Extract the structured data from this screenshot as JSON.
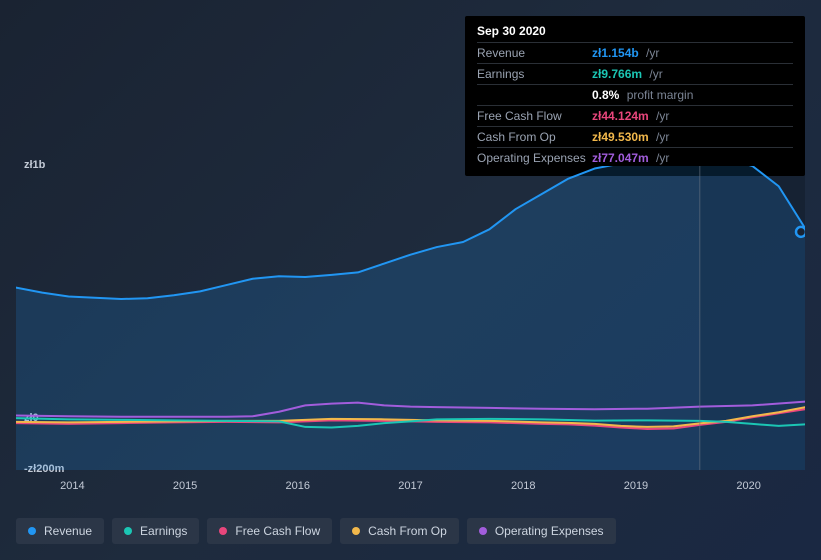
{
  "tooltip": {
    "date": "Sep 30 2020",
    "rows": [
      {
        "label": "Revenue",
        "value": "zł1.154b",
        "unit": "/yr",
        "color": "#2196f3"
      },
      {
        "label": "Earnings",
        "value": "zł9.766m",
        "unit": "/yr",
        "color": "#1bc6b4"
      },
      {
        "label": "",
        "value": "0.8%",
        "unit": "profit margin",
        "color": "#ffffff"
      },
      {
        "label": "Free Cash Flow",
        "value": "zł44.124m",
        "unit": "/yr",
        "color": "#e8467c"
      },
      {
        "label": "Cash From Op",
        "value": "zł49.530m",
        "unit": "/yr",
        "color": "#f2b84b"
      },
      {
        "label": "Operating Expenses",
        "value": "zł77.047m",
        "unit": "/yr",
        "color": "#a25ddc"
      }
    ]
  },
  "chart": {
    "type": "line-area",
    "background": "radial-gradient(#1a2842,#1a2332)",
    "ylim": [
      -200,
      1000
    ],
    "ylabels": [
      {
        "text": "zł1b",
        "y": 1000
      },
      {
        "text": "zł0",
        "y": 0
      },
      {
        "text": "-zł200m",
        "y": -200
      }
    ],
    "xlim": [
      2013.5,
      2021.0
    ],
    "xticks": [
      2014,
      2015,
      2016,
      2017,
      2018,
      2019,
      2020
    ],
    "xlabels": [
      "2014",
      "2015",
      "2016",
      "2017",
      "2018",
      "2019",
      "2020"
    ],
    "cursor_x": 2020.0,
    "shade_from_x": 2020.0,
    "marker_right": {
      "color": "#2196f3",
      "y": 740
    },
    "series": [
      {
        "name": "Revenue",
        "color": "#2196f3",
        "fill": true,
        "fill_opacity": 0.18,
        "width": 2,
        "points": [
          [
            2013.5,
            520
          ],
          [
            2013.75,
            500
          ],
          [
            2014.0,
            485
          ],
          [
            2014.25,
            480
          ],
          [
            2014.5,
            475
          ],
          [
            2014.75,
            478
          ],
          [
            2015.0,
            490
          ],
          [
            2015.25,
            505
          ],
          [
            2015.5,
            530
          ],
          [
            2015.75,
            555
          ],
          [
            2016.0,
            565
          ],
          [
            2016.25,
            562
          ],
          [
            2016.5,
            570
          ],
          [
            2016.75,
            580
          ],
          [
            2017.0,
            615
          ],
          [
            2017.25,
            650
          ],
          [
            2017.5,
            680
          ],
          [
            2017.75,
            700
          ],
          [
            2018.0,
            750
          ],
          [
            2018.25,
            830
          ],
          [
            2018.5,
            890
          ],
          [
            2018.75,
            950
          ],
          [
            2019.0,
            990
          ],
          [
            2019.25,
            1010
          ],
          [
            2019.5,
            1025
          ],
          [
            2019.75,
            1030
          ],
          [
            2020.0,
            1035
          ],
          [
            2020.25,
            1030
          ],
          [
            2020.5,
            1000
          ],
          [
            2020.75,
            920
          ],
          [
            2021.0,
            755
          ]
        ]
      },
      {
        "name": "Operating Expenses",
        "color": "#a25ddc",
        "fill": false,
        "width": 2,
        "points": [
          [
            2013.5,
            15
          ],
          [
            2014.0,
            12
          ],
          [
            2014.5,
            10
          ],
          [
            2015.0,
            10
          ],
          [
            2015.5,
            10
          ],
          [
            2015.75,
            12
          ],
          [
            2016.0,
            30
          ],
          [
            2016.25,
            55
          ],
          [
            2016.5,
            62
          ],
          [
            2016.75,
            66
          ],
          [
            2017.0,
            55
          ],
          [
            2017.25,
            50
          ],
          [
            2017.5,
            48
          ],
          [
            2018.0,
            45
          ],
          [
            2018.5,
            42
          ],
          [
            2019.0,
            40
          ],
          [
            2019.5,
            42
          ],
          [
            2020.0,
            50
          ],
          [
            2020.5,
            55
          ],
          [
            2021.0,
            70
          ]
        ]
      },
      {
        "name": "Free Cash Flow",
        "color": "#e8467c",
        "fill": false,
        "width": 2,
        "points": [
          [
            2013.5,
            -15
          ],
          [
            2014.0,
            -18
          ],
          [
            2014.5,
            -15
          ],
          [
            2015.0,
            -12
          ],
          [
            2015.5,
            -10
          ],
          [
            2016.0,
            -12
          ],
          [
            2016.25,
            -8
          ],
          [
            2016.5,
            -4
          ],
          [
            2017.0,
            -6
          ],
          [
            2017.5,
            -10
          ],
          [
            2018.0,
            -12
          ],
          [
            2018.5,
            -18
          ],
          [
            2018.75,
            -20
          ],
          [
            2019.0,
            -25
          ],
          [
            2019.25,
            -32
          ],
          [
            2019.5,
            -38
          ],
          [
            2019.75,
            -36
          ],
          [
            2020.0,
            -22
          ],
          [
            2020.25,
            -10
          ],
          [
            2020.5,
            8
          ],
          [
            2020.75,
            24
          ],
          [
            2021.0,
            40
          ]
        ]
      },
      {
        "name": "Cash From Op",
        "color": "#f2b84b",
        "fill": false,
        "width": 2,
        "points": [
          [
            2013.5,
            -10
          ],
          [
            2014.0,
            -12
          ],
          [
            2014.5,
            -10
          ],
          [
            2015.0,
            -8
          ],
          [
            2015.5,
            -6
          ],
          [
            2016.0,
            -6
          ],
          [
            2016.25,
            -2
          ],
          [
            2016.5,
            2
          ],
          [
            2017.0,
            0
          ],
          [
            2017.5,
            -4
          ],
          [
            2018.0,
            -6
          ],
          [
            2018.5,
            -12
          ],
          [
            2018.75,
            -14
          ],
          [
            2019.0,
            -18
          ],
          [
            2019.25,
            -26
          ],
          [
            2019.5,
            -30
          ],
          [
            2019.75,
            -28
          ],
          [
            2020.0,
            -16
          ],
          [
            2020.25,
            -6
          ],
          [
            2020.5,
            12
          ],
          [
            2020.75,
            28
          ],
          [
            2021.0,
            48
          ]
        ]
      },
      {
        "name": "Earnings",
        "color": "#1bc6b4",
        "fill": false,
        "width": 2,
        "points": [
          [
            2013.5,
            5
          ],
          [
            2014.0,
            0
          ],
          [
            2014.5,
            -2
          ],
          [
            2015.0,
            -4
          ],
          [
            2015.5,
            -6
          ],
          [
            2016.0,
            -8
          ],
          [
            2016.25,
            -30
          ],
          [
            2016.5,
            -32
          ],
          [
            2016.75,
            -26
          ],
          [
            2017.0,
            -15
          ],
          [
            2017.25,
            -8
          ],
          [
            2017.5,
            0
          ],
          [
            2018.0,
            2
          ],
          [
            2018.5,
            0
          ],
          [
            2019.0,
            -5
          ],
          [
            2019.5,
            -4
          ],
          [
            2020.0,
            -6
          ],
          [
            2020.25,
            -10
          ],
          [
            2020.5,
            -18
          ],
          [
            2020.75,
            -26
          ],
          [
            2021.0,
            -20
          ]
        ]
      }
    ],
    "legend": [
      {
        "label": "Revenue",
        "color": "#2196f3"
      },
      {
        "label": "Earnings",
        "color": "#1bc6b4"
      },
      {
        "label": "Free Cash Flow",
        "color": "#e8467c"
      },
      {
        "label": "Cash From Op",
        "color": "#f2b84b"
      },
      {
        "label": "Operating Expenses",
        "color": "#a25ddc"
      }
    ],
    "axis_color": "#c3cad6",
    "label_fontsize": 11
  }
}
